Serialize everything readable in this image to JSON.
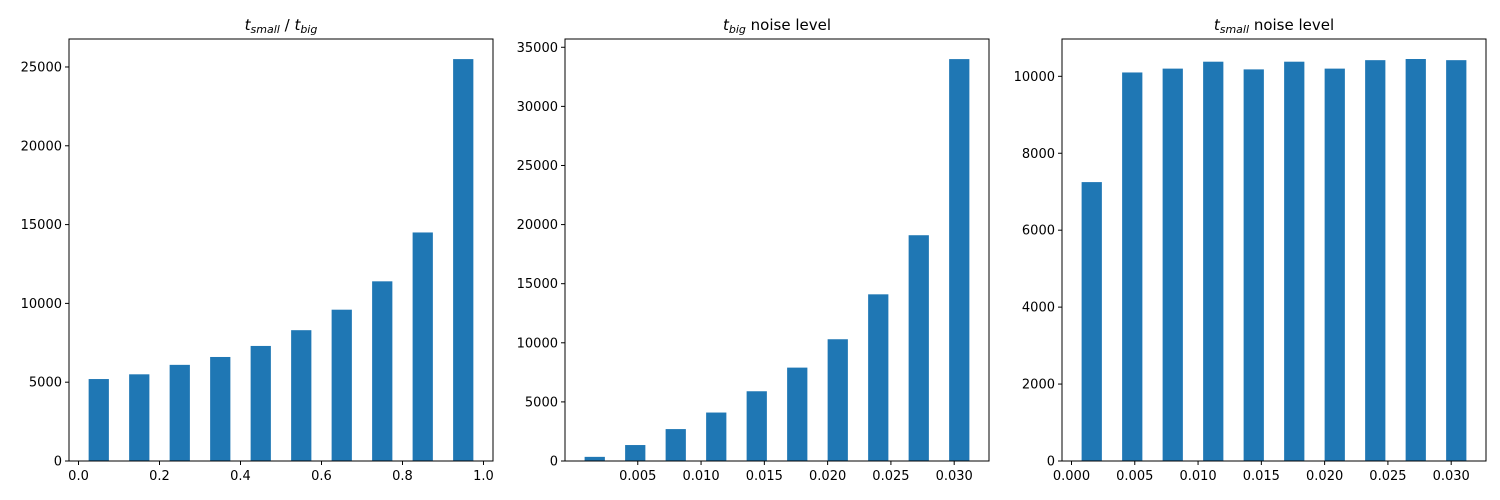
{
  "colors": {
    "bar": "#1f77b4"
  },
  "chart_data": [
    {
      "type": "bar",
      "title_parts": [
        "t",
        "small",
        " / ",
        "t",
        "big"
      ],
      "x": [
        0.05,
        0.15,
        0.25,
        0.35,
        0.45,
        0.55,
        0.65,
        0.75,
        0.85,
        0.95
      ],
      "values": [
        5200,
        5500,
        6100,
        6600,
        7300,
        8300,
        9600,
        11400,
        14500,
        25500
      ],
      "bar_width": 0.05,
      "xlim": [
        -0.0235,
        1.0235
      ],
      "ylim": [
        0,
        26775
      ],
      "xticks": [
        0.0,
        0.2,
        0.4,
        0.6,
        0.8,
        1.0
      ],
      "xtick_labels": [
        "0.0",
        "0.2",
        "0.4",
        "0.6",
        "0.8",
        "1.0"
      ],
      "yticks": [
        0,
        5000,
        10000,
        15000,
        20000,
        25000
      ],
      "ytick_labels": [
        "0",
        "5000",
        "10000",
        "15000",
        "20000",
        "25000"
      ]
    },
    {
      "type": "bar",
      "title_parts": [
        "t",
        "big",
        " noise level"
      ],
      "x": [
        0.0016,
        0.0048,
        0.008,
        0.0112,
        0.0144,
        0.0176,
        0.0208,
        0.024,
        0.0272,
        0.0304
      ],
      "values": [
        350,
        1350,
        2700,
        4100,
        5900,
        7900,
        10300,
        14100,
        19100,
        34000
      ],
      "bar_width": 0.0016,
      "xlim": [
        -0.00075,
        0.03275
      ],
      "ylim": [
        0,
        35700
      ],
      "xticks": [
        0.005,
        0.01,
        0.015,
        0.02,
        0.025,
        0.03
      ],
      "xtick_labels": [
        "0.005",
        "0.010",
        "0.015",
        "0.020",
        "0.025",
        "0.030"
      ],
      "yticks": [
        0,
        5000,
        10000,
        15000,
        20000,
        25000,
        30000,
        35000
      ],
      "ytick_labels": [
        "0",
        "5000",
        "10000",
        "15000",
        "20000",
        "25000",
        "30000",
        "35000"
      ]
    },
    {
      "type": "bar",
      "title_parts": [
        "t",
        "small",
        " noise level"
      ],
      "x": [
        0.0016,
        0.0048,
        0.008,
        0.0112,
        0.0144,
        0.0176,
        0.0208,
        0.024,
        0.0272,
        0.0304
      ],
      "values": [
        7250,
        10100,
        10200,
        10380,
        10180,
        10380,
        10200,
        10420,
        10450,
        10420
      ],
      "bar_width": 0.0016,
      "xlim": [
        -0.00075,
        0.03275
      ],
      "ylim": [
        0,
        10970
      ],
      "xticks": [
        0.0,
        0.005,
        0.01,
        0.015,
        0.02,
        0.025,
        0.03
      ],
      "xtick_labels": [
        "0.000",
        "0.005",
        "0.010",
        "0.015",
        "0.020",
        "0.025",
        "0.030"
      ],
      "yticks": [
        0,
        2000,
        4000,
        6000,
        8000,
        10000
      ],
      "ytick_labels": [
        "0",
        "2000",
        "4000",
        "6000",
        "8000",
        "10000"
      ]
    }
  ]
}
